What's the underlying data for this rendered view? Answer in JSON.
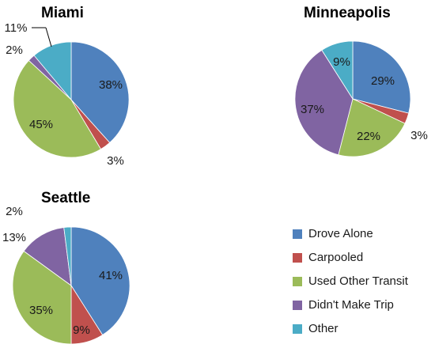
{
  "chart_data": [
    {
      "type": "pie",
      "title": "Miami",
      "categories": [
        "Drove Alone",
        "Carpooled",
        "Used Other Transit",
        "Didn't Make Trip",
        "Other"
      ],
      "values": [
        38,
        3,
        45,
        2,
        11
      ],
      "value_labels": [
        "38%",
        "3%",
        "45%",
        "2%",
        "11%"
      ]
    },
    {
      "type": "pie",
      "title": "Minneapolis",
      "categories": [
        "Drove Alone",
        "Carpooled",
        "Used Other Transit",
        "Didn't Make Trip",
        "Other"
      ],
      "values": [
        29,
        3,
        22,
        37,
        9
      ],
      "value_labels": [
        "29%",
        "3%",
        "22%",
        "37%",
        "9%"
      ]
    },
    {
      "type": "pie",
      "title": "Seattle",
      "categories": [
        "Drove Alone",
        "Carpooled",
        "Used Other Transit",
        "Didn't Make Trip",
        "Other"
      ],
      "values": [
        41,
        9,
        35,
        13,
        2
      ],
      "value_labels": [
        "41%",
        "9%",
        "35%",
        "13%",
        "2%"
      ]
    }
  ],
  "legend": {
    "placement": "bottom-right",
    "items": [
      {
        "label": "Drove Alone",
        "color": "#4f81bd"
      },
      {
        "label": "Carpooled",
        "color": "#c0504d"
      },
      {
        "label": "Used Other Transit",
        "color": "#9bbb59"
      },
      {
        "label": "Didn't Make Trip",
        "color": "#8064a2"
      },
      {
        "label": "Other",
        "color": "#4bacc6"
      }
    ]
  }
}
